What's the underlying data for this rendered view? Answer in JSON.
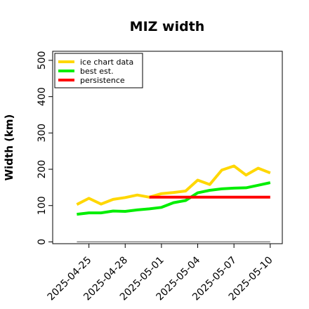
{
  "chart_data": {
    "type": "line",
    "title": "MIZ width",
    "xlabel": "",
    "ylabel": "Width (km)",
    "ylim": [
      -5,
      525
    ],
    "yticks": [
      0,
      100,
      200,
      300,
      400,
      500
    ],
    "xlim": [
      "2025-04-22",
      "2025-05-11"
    ],
    "xticks": [
      "2025-04-25",
      "2025-04-28",
      "2025-05-01",
      "2025-05-04",
      "2025-05-07",
      "2025-05-10"
    ],
    "grid": false,
    "legend_position": "top-left",
    "baseline": 0,
    "series": [
      {
        "name": "ice chart data",
        "color": "#FFD700",
        "dates": [
          "2025-04-24",
          "2025-04-25",
          "2025-04-26",
          "2025-04-27",
          "2025-04-28",
          "2025-04-29",
          "2025-04-30",
          "2025-05-01",
          "2025-05-02",
          "2025-05-03",
          "2025-05-04",
          "2025-05-05",
          "2025-05-06",
          "2025-05-07",
          "2025-05-08",
          "2025-05-09",
          "2025-05-10"
        ],
        "values": [
          103,
          120,
          104,
          117,
          122,
          129,
          123,
          133,
          136,
          140,
          170,
          158,
          198,
          209,
          184,
          203,
          190
        ]
      },
      {
        "name": "best est.",
        "color": "#00EE00",
        "dates": [
          "2025-04-24",
          "2025-04-25",
          "2025-04-26",
          "2025-04-27",
          "2025-04-28",
          "2025-04-29",
          "2025-04-30",
          "2025-05-01",
          "2025-05-02",
          "2025-05-03",
          "2025-05-04",
          "2025-05-05",
          "2025-05-06",
          "2025-05-07",
          "2025-05-08",
          "2025-05-09",
          "2025-05-10"
        ],
        "values": [
          76,
          80,
          80,
          85,
          84,
          88,
          91,
          95,
          108,
          114,
          135,
          142,
          146,
          148,
          149,
          156,
          163
        ]
      },
      {
        "name": "persistence",
        "color": "#FF0000",
        "dates": [
          "2025-04-30",
          "2025-05-10"
        ],
        "values": [
          123,
          123
        ]
      }
    ]
  }
}
